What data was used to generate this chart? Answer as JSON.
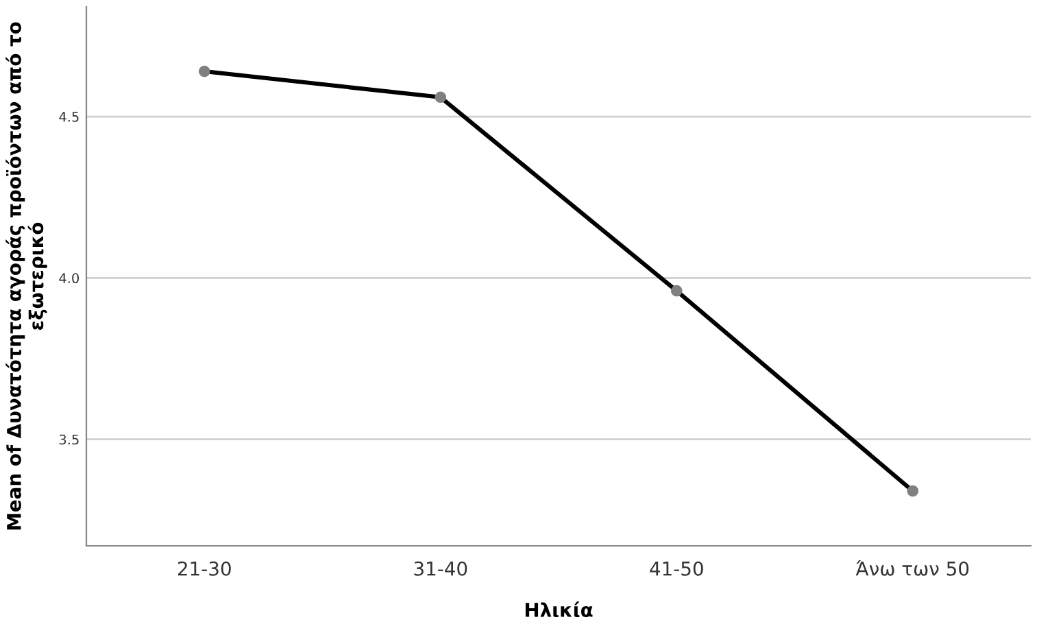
{
  "chart_data": {
    "type": "line",
    "xlabel": "Ηλικία",
    "ylabel": "Mean of Δυνατότητα αγοράς προϊόντων από το εξωτερικό",
    "categories": [
      "21-30",
      "31-40",
      "41-50",
      "Άνω των 50"
    ],
    "series": [
      {
        "color": "#000000",
        "values": [
          4.64,
          4.56,
          3.96,
          3.34
        ]
      }
    ],
    "ylim": [
      3.17,
      4.84
    ],
    "yticks": [
      3.5,
      {
        "value": 4,
        "label": "4.0"
      },
      4.5
    ],
    "grid": "y",
    "marker": "circle",
    "line_style": "solid",
    "legend": false
  }
}
